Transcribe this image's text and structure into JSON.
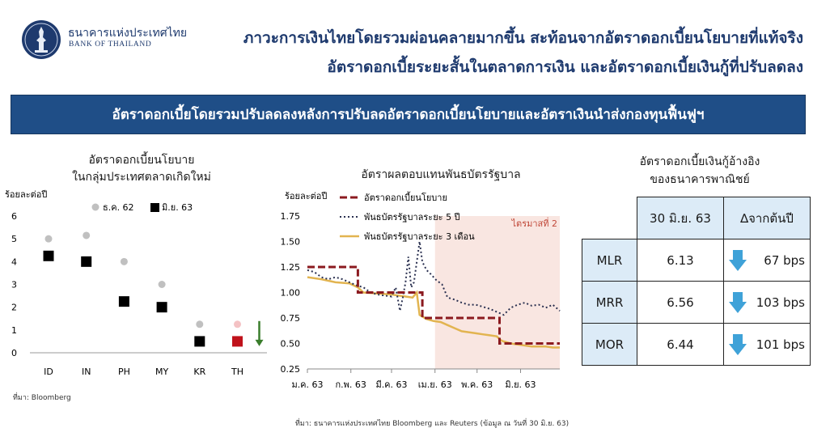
{
  "header": {
    "org_name_th": "ธนาคารแห่งประเทศไทย",
    "org_name_en": "BANK OF THAILAND",
    "title_line1": "ภาวะการเงินไทยโดยรวมผ่อนคลายมากขึ้น สะท้อนจากอัตราดอกเบี้ยนโยบายที่แท้จริง",
    "title_line2": "อัตราดอกเบี้ยระยะสั้นในตลาดการเงิน และอัตราดอกเบี้ยเงินกู้ที่ปรับลดลง",
    "banner": "อัตราดอกเบี้ยโดยรวมปรับลดลงหลังการปรับลดอัตราดอกเบี้ยนโยบายและอัตราเงินนำส่งกองทุนฟื้นฟูฯ"
  },
  "chart_data": [
    {
      "type": "scatter",
      "title_line1": "อัตราดอกเบี้ยนโยบาย",
      "title_line2": "ในกลุ่มประเทศตลาดเกิดใหม่",
      "ylabel": "ร้อยละต่อปี",
      "categories": [
        "ID",
        "IN",
        "PH",
        "MY",
        "KR",
        "TH"
      ],
      "ylim": [
        0,
        6
      ],
      "yticks": [
        "0",
        "1",
        "2",
        "3",
        "4",
        "5",
        "6"
      ],
      "series": [
        {
          "name": "ธ.ค. 62",
          "values": [
            5.0,
            5.15,
            4.0,
            3.0,
            1.25,
            1.25
          ]
        },
        {
          "name": "มิ.ย. 63",
          "values": [
            4.25,
            4.0,
            2.25,
            2.0,
            0.5,
            0.5
          ]
        }
      ],
      "colors": {
        "dec": "#c0c0c0",
        "jun": "#000000",
        "th_dec": "#f4c2c4",
        "th_jun": "#c0121b",
        "arrow": "#3a7d2c"
      },
      "source": "ที่มา: Bloomberg"
    },
    {
      "type": "line",
      "title": "อัตราผลตอบแทนพันธบัตรรัฐบาล",
      "ylabel": "ร้อยละต่อปี",
      "ylim": [
        0.25,
        1.75
      ],
      "yticks": [
        "0.25",
        "0.50",
        "0.75",
        "1.00",
        "1.25",
        "1.50",
        "1.75"
      ],
      "xticks": [
        "ม.ค. 63",
        "ก.พ. 63",
        "มี.ค. 63",
        "เม.ย. 63",
        "พ.ค. 63",
        "มิ.ย. 63"
      ],
      "x_range_days": [
        0,
        180
      ],
      "shade": {
        "from_day": 91,
        "to_day": 180,
        "label": "ไตรมาสที่ 2"
      },
      "series": [
        {
          "name": "อัตราดอกเบี้ยนโยบาย",
          "style": "dashed",
          "days": [
            0,
            36,
            36,
            82,
            82,
            137,
            137,
            180
          ],
          "values": [
            1.25,
            1.25,
            1.0,
            1.0,
            0.75,
            0.75,
            0.5,
            0.5
          ]
        },
        {
          "name": "พันธบัตรรัฐบาลระยะ 5 ปี",
          "style": "dotted",
          "days": [
            0,
            5,
            10,
            15,
            20,
            25,
            30,
            35,
            40,
            45,
            50,
            55,
            60,
            63,
            66,
            68,
            70,
            72,
            74,
            76,
            78,
            80,
            82,
            85,
            88,
            92,
            96,
            100,
            105,
            110,
            115,
            120,
            125,
            130,
            135,
            140,
            145,
            150,
            155,
            160,
            165,
            170,
            175,
            180
          ],
          "values": [
            1.22,
            1.2,
            1.15,
            1.13,
            1.15,
            1.13,
            1.1,
            1.07,
            1.05,
            1.0,
            0.98,
            0.97,
            0.96,
            1.05,
            0.82,
            0.95,
            1.1,
            1.35,
            1.05,
            1.1,
            1.3,
            1.5,
            1.3,
            1.22,
            1.18,
            1.12,
            1.08,
            0.95,
            0.93,
            0.9,
            0.88,
            0.88,
            0.86,
            0.84,
            0.81,
            0.78,
            0.85,
            0.88,
            0.9,
            0.87,
            0.88,
            0.85,
            0.88,
            0.82
          ]
        },
        {
          "name": "พันธบัตรรัฐบาลระยะ 3 เดือน",
          "style": "solid",
          "days": [
            0,
            10,
            20,
            30,
            36,
            40,
            50,
            60,
            65,
            70,
            75,
            78,
            80,
            85,
            90,
            95,
            100,
            105,
            110,
            115,
            120,
            125,
            130,
            135,
            138,
            140,
            145,
            150,
            155,
            160,
            165,
            170,
            175,
            180
          ],
          "values": [
            1.15,
            1.13,
            1.1,
            1.09,
            1.05,
            1.0,
            0.99,
            0.98,
            0.97,
            0.96,
            0.95,
            1.0,
            0.78,
            0.74,
            0.72,
            0.71,
            0.68,
            0.65,
            0.62,
            0.61,
            0.6,
            0.59,
            0.58,
            0.57,
            0.53,
            0.52,
            0.5,
            0.49,
            0.48,
            0.47,
            0.47,
            0.47,
            0.46,
            0.46
          ]
        }
      ],
      "colors": {
        "policy": "#8b1a1f",
        "bond5y": "#2a3050",
        "bill3m": "#e2b450",
        "shade": "#f9e6e1",
        "shade_label": "#c1493a"
      }
    },
    {
      "type": "table",
      "title_line1": "อัตราดอกเบี้ยเงินกู้อ้างอิง",
      "title_line2": "ของธนาคารพาณิชย์",
      "columns": [
        "30 มิ.ย. 63",
        "∆จากต้นปี"
      ],
      "rows": [
        {
          "label": "MLR",
          "value": "6.13",
          "change": "67 bps"
        },
        {
          "label": "MRR",
          "value": "6.56",
          "change": "103 bps"
        },
        {
          "label": "MOR",
          "value": "6.44",
          "change": "101 bps"
        }
      ],
      "colors": {
        "cell": "#dcebf7",
        "arrow": "#3fa2d8"
      }
    }
  ],
  "footer": {
    "source": "ที่มา: ธนาคารแห่งประเทศไทย Bloomberg และ Reuters (ข้อมูล ณ วันที่ 30 มิ.ย. 63)"
  }
}
